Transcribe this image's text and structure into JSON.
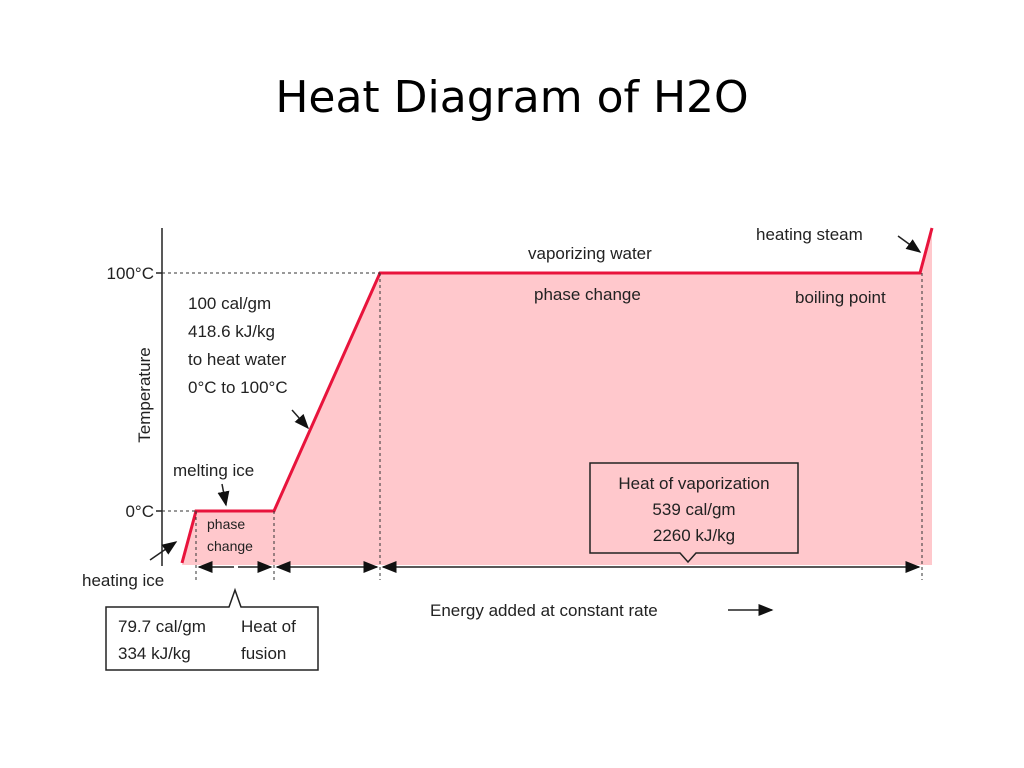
{
  "header": {
    "title": "Heat Diagram of H2O"
  },
  "axis": {
    "label": "Temperature",
    "top_tick": "100°C",
    "bottom_tick": "0°C",
    "x_label": "Energy added at constant rate"
  },
  "annotations": {
    "heating_steam": "heating steam",
    "vaporizing_water": "vaporizing water",
    "phase_change_top": "phase change",
    "boiling_point": "boiling point",
    "heat_water": [
      "100 cal/gm",
      "418.6 kJ/kg",
      "to heat water",
      "0°C to 100°C"
    ],
    "melting_ice": "melting ice",
    "phase_change_small": [
      "phase",
      "change"
    ],
    "heating_ice": "heating ice"
  },
  "boxes": {
    "vaporization": [
      "Heat of vaporization",
      "539 cal/gm",
      "2260 kJ/kg"
    ],
    "fusion": {
      "left": [
        "79.7 cal/gm",
        "334 kJ/kg"
      ],
      "right": [
        "Heat of",
        "fusion"
      ]
    }
  }
}
